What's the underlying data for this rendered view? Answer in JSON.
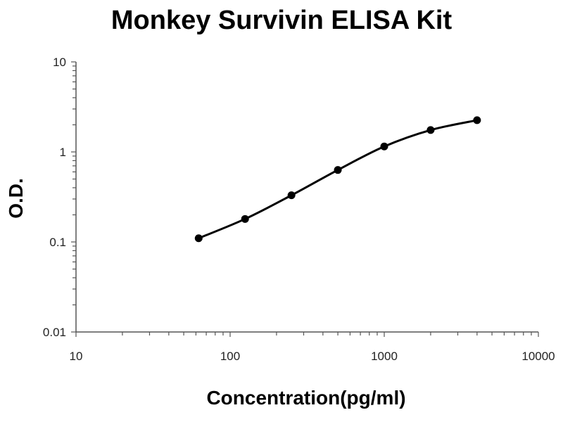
{
  "chart_data": {
    "type": "scatter",
    "title": "Monkey Survivin ELISA Kit",
    "xlabel": "Concentration(pg/ml)",
    "ylabel": "O.D.",
    "xscale": "log",
    "yscale": "log",
    "xlim": [
      10,
      10000
    ],
    "ylim": [
      0.01,
      10
    ],
    "x_ticks": [
      "10",
      "100",
      "1000",
      "10000"
    ],
    "y_ticks": [
      "0.01",
      "0.1",
      "1",
      "10"
    ],
    "grid": false,
    "fit_line": "smooth curve through points",
    "series": [
      {
        "x": [
          62.5,
          125,
          250,
          500,
          1000,
          2000,
          4000
        ],
        "y": [
          0.11,
          0.18,
          0.33,
          0.63,
          1.15,
          1.75,
          2.25
        ]
      }
    ]
  }
}
